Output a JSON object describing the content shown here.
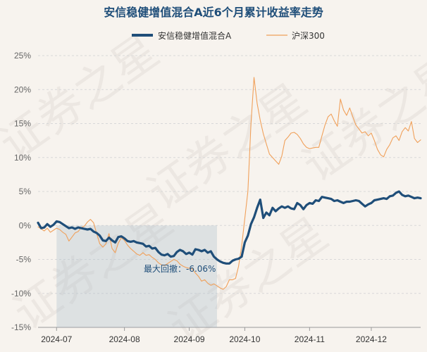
{
  "chart_data": {
    "type": "line",
    "title": "安信稳健增值混合A近6个月累计收益率走势",
    "watermark": "证券之星",
    "ylim": [
      -15,
      25
    ],
    "yticks": [
      25,
      20,
      15,
      10,
      5,
      0,
      -5,
      -10,
      -15
    ],
    "ytick_labels": [
      "25%",
      "20%",
      "15%",
      "10%",
      "5%",
      "0%",
      "-5%",
      "-10%",
      "-15%"
    ],
    "xticks": [
      {
        "label": "2024-07",
        "index": 6
      },
      {
        "label": "2024-08",
        "index": 28
      },
      {
        "label": "2024-09",
        "index": 49
      },
      {
        "label": "2024-10",
        "index": 67
      },
      {
        "label": "2024-11",
        "index": 88
      },
      {
        "label": "2024-12",
        "index": 108
      }
    ],
    "n_points": 125,
    "grid": true,
    "legend_position": "top-center",
    "series": [
      {
        "name": "安信稳健增值混合A",
        "color": "#1f4e79",
        "values": [
          0.4,
          -0.4,
          -0.3,
          0.2,
          -0.2,
          0.1,
          0.6,
          0.5,
          0.2,
          -0.1,
          -0.4,
          -0.3,
          -0.5,
          -0.3,
          -0.4,
          -0.5,
          -0.6,
          -0.5,
          -0.9,
          -1.1,
          -1.5,
          -2.2,
          -2.3,
          -1.8,
          -2.2,
          -2.5,
          -1.7,
          -1.6,
          -1.9,
          -2.3,
          -2.4,
          -2.3,
          -2.5,
          -2.6,
          -2.7,
          -3.1,
          -3.0,
          -3.4,
          -3.3,
          -3.9,
          -4.3,
          -4.4,
          -4.2,
          -4.6,
          -4.5,
          -3.9,
          -3.6,
          -3.8,
          -4.2,
          -4.0,
          -4.3,
          -3.5,
          -3.6,
          -3.8,
          -3.6,
          -4.0,
          -3.8,
          -4.6,
          -5.0,
          -5.3,
          -5.5,
          -5.6,
          -5.6,
          -5.2,
          -5.0,
          -4.9,
          -4.6,
          -2.5,
          -1.5,
          0.2,
          1.2,
          2.6,
          3.8,
          1.1,
          1.9,
          1.5,
          2.6,
          2.1,
          2.5,
          2.8,
          2.6,
          2.8,
          2.5,
          2.4,
          3.3,
          3.0,
          2.4,
          3.0,
          3.3,
          3.2,
          3.7,
          3.6,
          4.2,
          4.1,
          4.0,
          3.9,
          3.6,
          3.7,
          3.5,
          3.3,
          3.5,
          3.5,
          3.6,
          3.7,
          3.6,
          3.2,
          2.8,
          3.1,
          3.3,
          3.7,
          3.8,
          3.9,
          4.0,
          3.9,
          4.3,
          4.4,
          4.8,
          5.0,
          4.5,
          4.3,
          4.4,
          4.2,
          4.0,
          4.1,
          4.0
        ]
      },
      {
        "name": "沪深300",
        "color": "#f0a05a",
        "values": [
          -0.2,
          -0.5,
          -0.8,
          -0.4,
          -1.0,
          -0.7,
          -0.4,
          -0.6,
          -1.0,
          -1.3,
          -2.3,
          -1.7,
          -1.1,
          -0.9,
          -0.3,
          -0.1,
          0.5,
          0.9,
          0.4,
          -1.2,
          -2.7,
          -3.2,
          -2.7,
          -1.2,
          -3.4,
          -4.0,
          -2.6,
          -1.8,
          -2.2,
          -2.9,
          -3.4,
          -3.8,
          -4.2,
          -4.4,
          -4.0,
          -4.4,
          -4.3,
          -4.7,
          -5.0,
          -5.5,
          -5.8,
          -5.9,
          -5.6,
          -5.3,
          -5.0,
          -5.2,
          -5.7,
          -6.0,
          -6.2,
          -6.3,
          -6.4,
          -7.0,
          -7.5,
          -8.2,
          -8.0,
          -8.5,
          -8.8,
          -8.6,
          -8.9,
          -9.2,
          -9.4,
          -9.0,
          -8.0,
          -8.0,
          -7.8,
          -6.0,
          -3.0,
          1.0,
          5.0,
          15.0,
          21.8,
          18.0,
          15.5,
          13.5,
          12.0,
          10.5,
          10.0,
          9.5,
          9.0,
          10.2,
          12.5,
          13.0,
          13.6,
          13.7,
          13.4,
          12.8,
          12.0,
          11.5,
          11.3,
          11.4,
          11.5,
          11.5,
          13.2,
          14.8,
          16.0,
          16.4,
          15.4,
          14.6,
          18.6,
          17.0,
          16.2,
          17.3,
          16.0,
          14.8,
          14.2,
          13.6,
          13.8,
          13.2,
          13.6,
          12.5,
          11.2,
          10.4,
          10.1,
          11.2,
          11.9,
          12.9,
          13.2,
          12.5,
          13.8,
          14.4,
          13.9,
          15.3,
          12.8,
          12.2,
          12.6
        ]
      }
    ],
    "annotation": {
      "text": "最大回撤：-6.06%",
      "shaded_from_index": 6,
      "shaded_to_index": 58
    }
  }
}
